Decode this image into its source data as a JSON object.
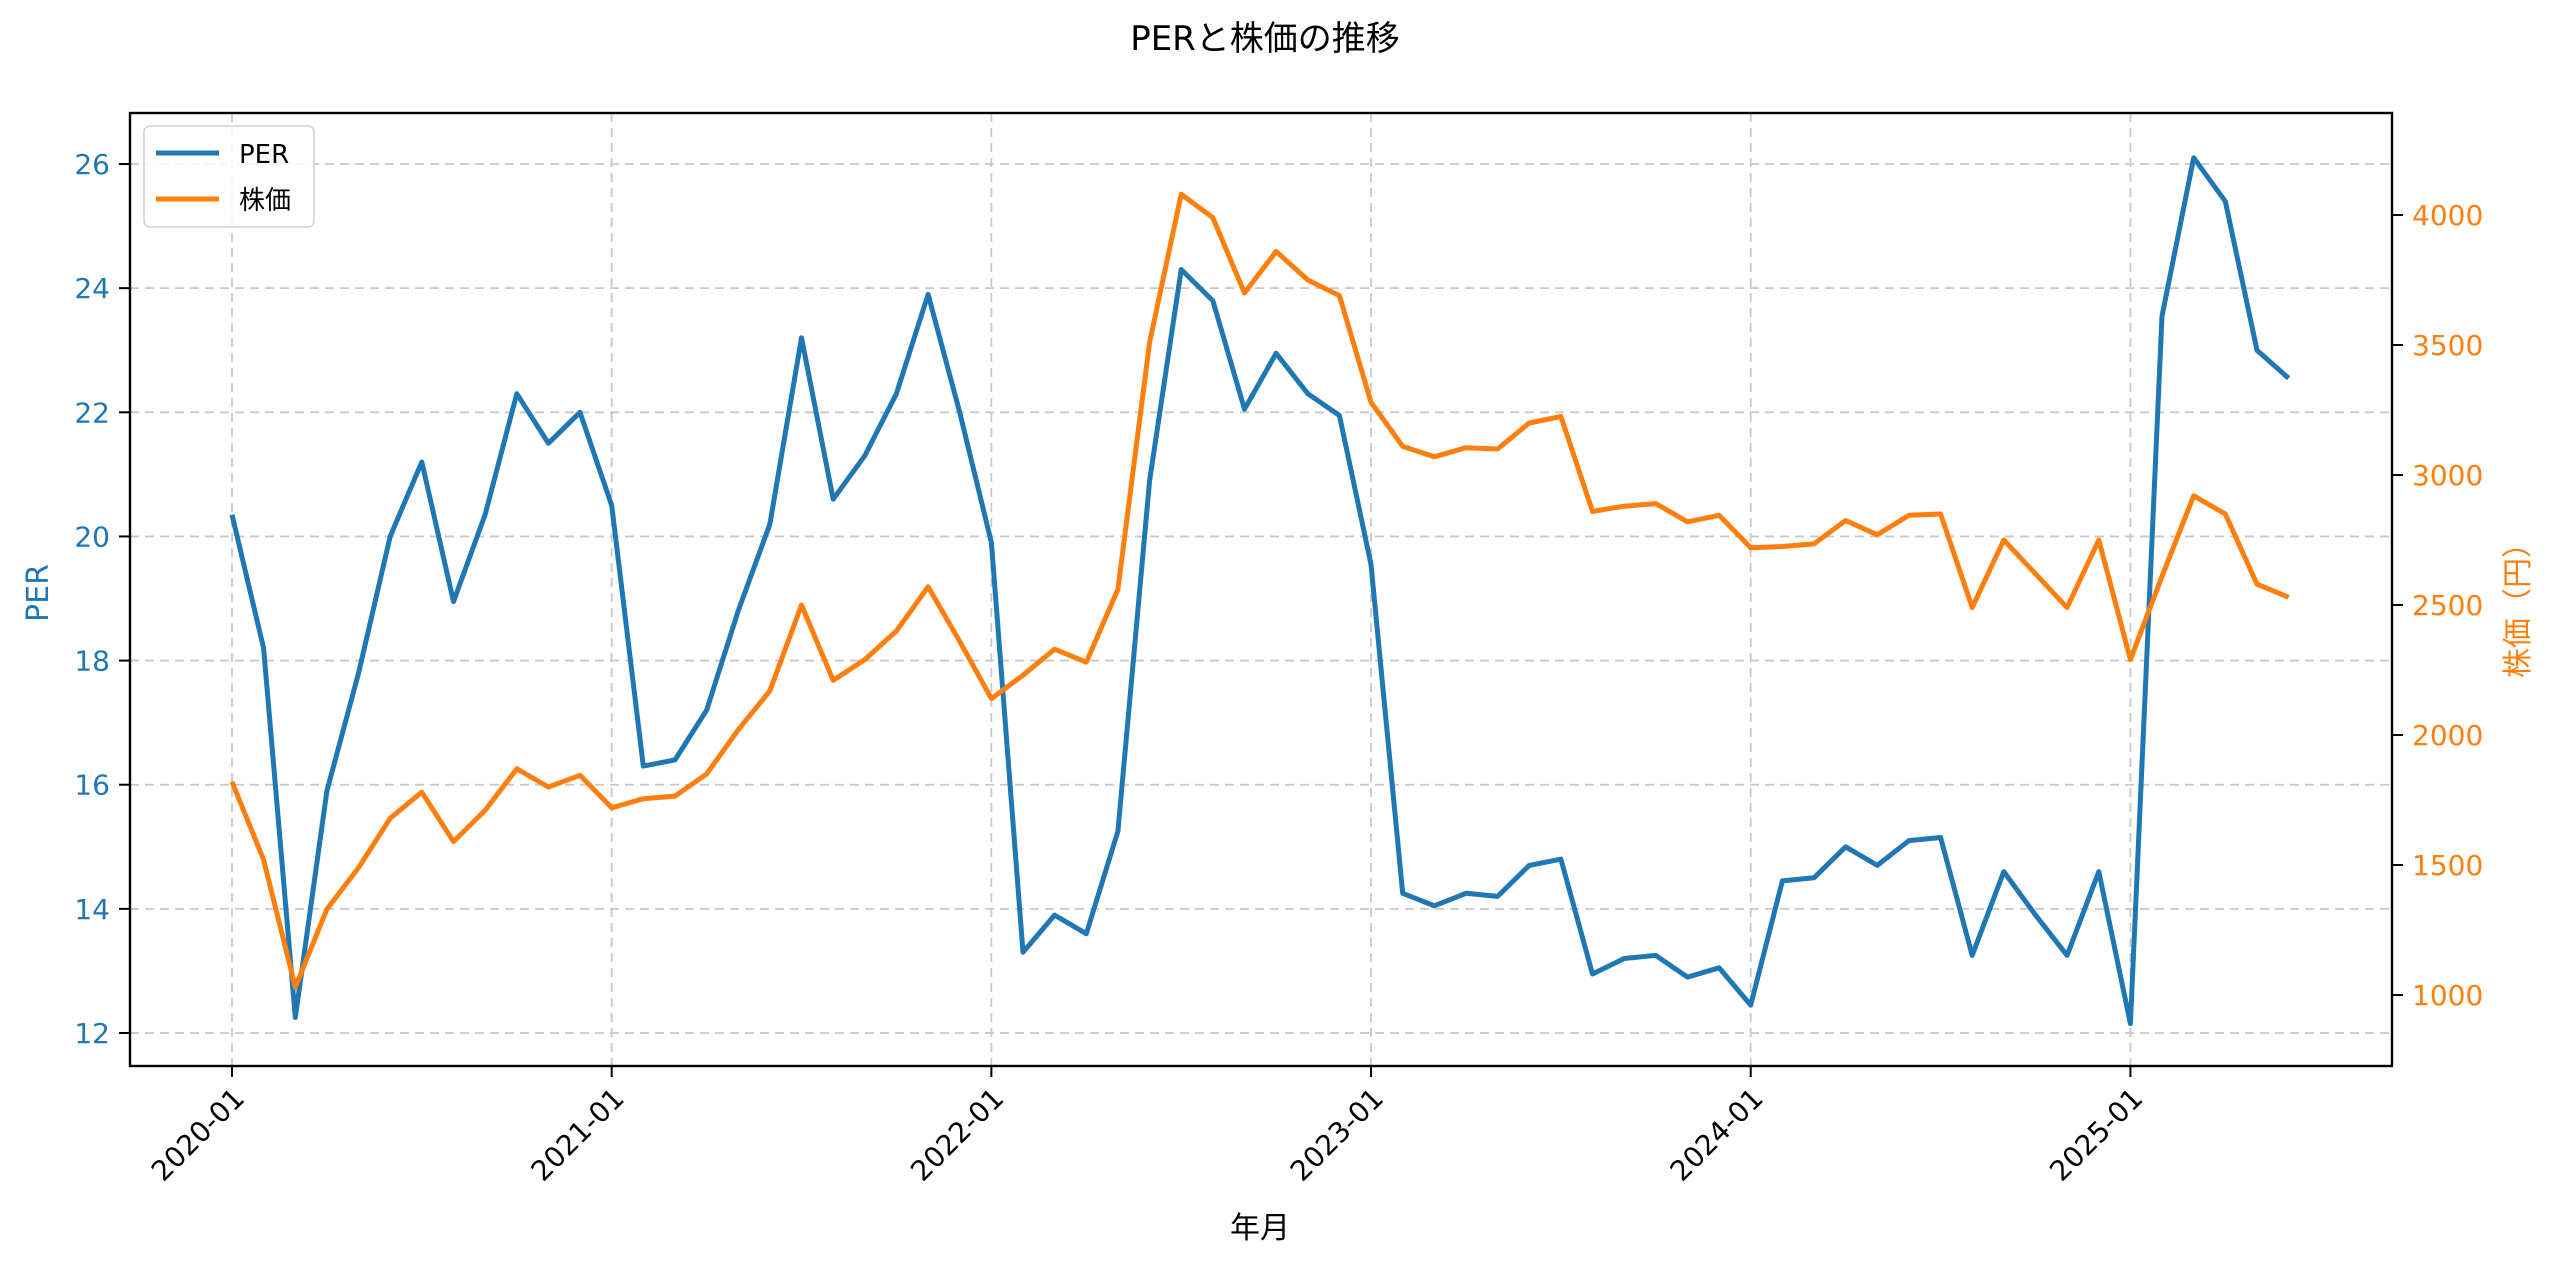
{
  "chart_data": {
    "type": "line",
    "title": "PERと株価の推移",
    "xlabel": "年月",
    "ylabel": "PER",
    "ylabel_right": "株価（円）",
    "ylim": [
      11.5,
      26.8
    ],
    "ylim_right": [
      720,
      4400
    ],
    "grid": true,
    "legend_position": "upper left",
    "x_tick_labels": [
      "2020-01",
      "2021-01",
      "2022-01",
      "2023-01",
      "2024-01",
      "2025-01"
    ],
    "y_ticks_left": [
      12,
      14,
      16,
      18,
      20,
      22,
      24,
      26
    ],
    "y_ticks_right": [
      1000,
      1500,
      2000,
      2500,
      3000,
      3500,
      4000
    ],
    "x": [
      "2020-01",
      "2020-02",
      "2020-03",
      "2020-04",
      "2020-05",
      "2020-06",
      "2020-07",
      "2020-08",
      "2020-09",
      "2020-10",
      "2020-11",
      "2020-12",
      "2021-01",
      "2021-02",
      "2021-03",
      "2021-04",
      "2021-05",
      "2021-06",
      "2021-07",
      "2021-08",
      "2021-09",
      "2021-10",
      "2021-11",
      "2021-12",
      "2022-01",
      "2022-02",
      "2022-03",
      "2022-04",
      "2022-05",
      "2022-06",
      "2022-07",
      "2022-08",
      "2022-09",
      "2022-10",
      "2022-11",
      "2022-12",
      "2023-01",
      "2023-02",
      "2023-03",
      "2023-04",
      "2023-05",
      "2023-06",
      "2023-07",
      "2023-08",
      "2023-09",
      "2023-10",
      "2023-11",
      "2023-12",
      "2024-01",
      "2024-02",
      "2024-03",
      "2024-04",
      "2024-05",
      "2024-06",
      "2024-07",
      "2024-08",
      "2024-09",
      "2024-10",
      "2024-11",
      "2024-12",
      "2025-01",
      "2025-02",
      "2025-03",
      "2025-04",
      "2025-05",
      "2025-06"
    ],
    "series": [
      {
        "name": "PER",
        "axis": "left",
        "color": "#1f77b4",
        "values": [
          20.35,
          18.2,
          12.25,
          15.9,
          17.8,
          20.0,
          21.2,
          18.95,
          20.35,
          22.3,
          21.5,
          22.0,
          20.5,
          16.3,
          16.4,
          17.2,
          18.8,
          20.2,
          23.2,
          20.6,
          21.3,
          22.3,
          23.9,
          22.0,
          19.9,
          13.3,
          13.9,
          13.6,
          15.25,
          20.9,
          24.3,
          23.8,
          22.05,
          22.95,
          22.3,
          21.95,
          19.55,
          14.25,
          14.05,
          14.25,
          14.2,
          14.7,
          14.8,
          12.95,
          13.2,
          13.25,
          12.9,
          13.05,
          12.45,
          14.45,
          14.5,
          15.0,
          14.7,
          15.1,
          15.15,
          13.25,
          14.6,
          13.9,
          13.25,
          14.6,
          12.15,
          23.55,
          26.1,
          25.4,
          23.0,
          22.55
        ]
      },
      {
        "name": "株価",
        "axis": "right",
        "color": "#ff7f0e",
        "values": [
          1820,
          1520,
          1030,
          1330,
          1490,
          1680,
          1780,
          1590,
          1710,
          1870,
          1800,
          1845,
          1720,
          1755,
          1765,
          1850,
          2020,
          2170,
          2500,
          2210,
          2290,
          2400,
          2570,
          2360,
          2140,
          2230,
          2330,
          2280,
          2560,
          3510,
          4080,
          3990,
          3700,
          3860,
          3750,
          3690,
          3280,
          3110,
          3070,
          3105,
          3100,
          3200,
          3225,
          2860,
          2880,
          2890,
          2820,
          2845,
          2720,
          2725,
          2735,
          2825,
          2770,
          2845,
          2850,
          2490,
          2750,
          2620,
          2490,
          2750,
          2290,
          2610,
          2920,
          2850,
          2580,
          2530
        ]
      }
    ]
  },
  "legend": {
    "items": [
      {
        "label": "PER",
        "color": "#1f77b4"
      },
      {
        "label": "株価",
        "color": "#ff7f0e"
      }
    ]
  }
}
